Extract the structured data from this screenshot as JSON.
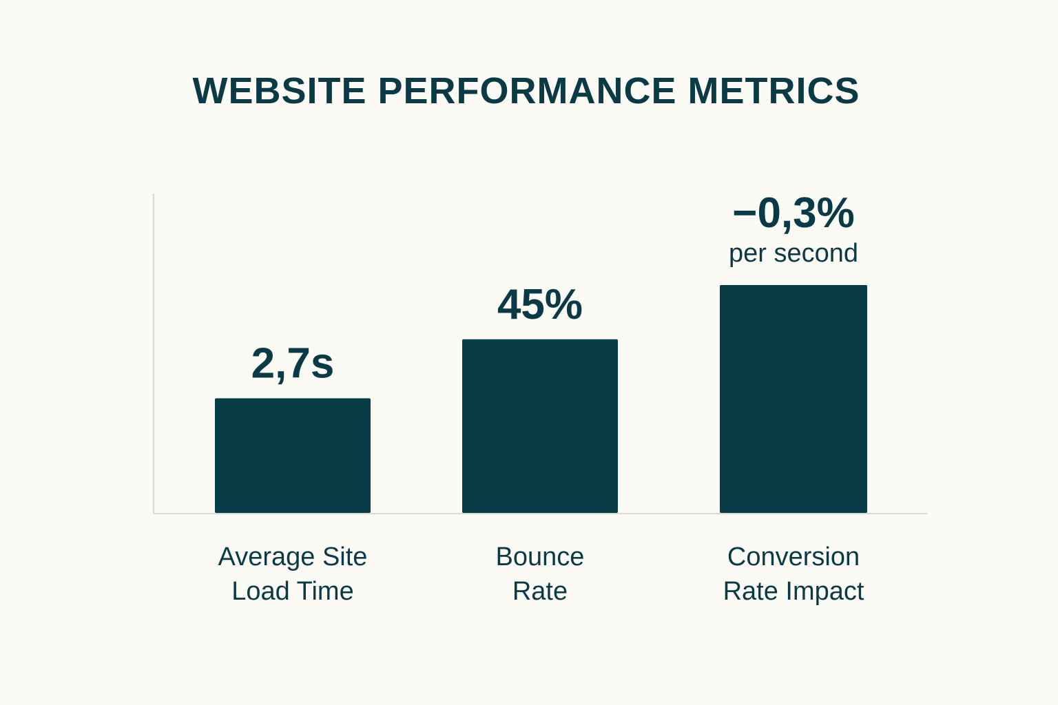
{
  "chart_data": {
    "type": "bar",
    "title": "WEBSITE PERFORMANCE METRICS",
    "categories": [
      [
        "Average Site",
        "Load Time"
      ],
      [
        "Bounce",
        "Rate"
      ],
      [
        "Conversion",
        "Rate Impact"
      ]
    ],
    "values": [
      2.7,
      45,
      -0.3
    ],
    "value_labels": [
      [
        "2,7s"
      ],
      [
        "45%"
      ],
      [
        "−0,3%",
        "per second"
      ]
    ],
    "relative_bar_heights": [
      0.503,
      0.762,
      1.0
    ],
    "xlabel": "",
    "ylabel": "",
    "grid": false,
    "legend": "none"
  },
  "colors": {
    "background": "#fbfaf5",
    "bar": "#083d48",
    "text": "#0b3a47",
    "axis": "#d8d8d4"
  }
}
